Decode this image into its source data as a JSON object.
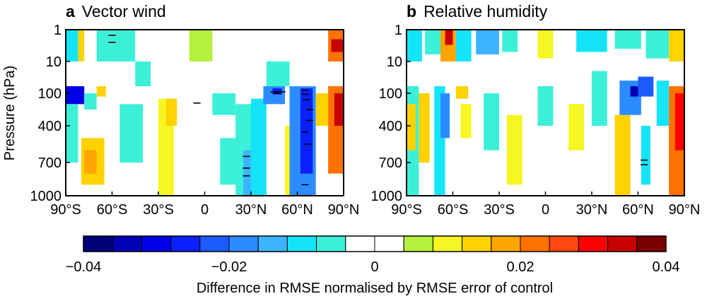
{
  "chart_data": {
    "type": "heatmap",
    "panels": [
      {
        "letter": "a",
        "title": "Vector wind",
        "cells": [
          {
            "lat": [
              -90,
              -82
            ],
            "p": [
              1,
              10
            ],
            "v": -0.012
          },
          {
            "lat": [
              -62,
              -58
            ],
            "p": [
              1,
              3
            ],
            "v": -0.035
          },
          {
            "lat": [
              -70,
              -45
            ],
            "p": [
              1,
              10
            ],
            "v": -0.006
          },
          {
            "lat": [
              -82,
              -78
            ],
            "p": [
              1,
              10
            ],
            "v": 0.012
          },
          {
            "lat": [
              -90,
              -80
            ],
            "p": [
              60,
              130
            ],
            "v": -0.02
          },
          {
            "lat": [
              -90,
              -78
            ],
            "p": [
              60,
              200
            ],
            "v": -0.03
          },
          {
            "lat": [
              -78,
              -70
            ],
            "p": [
              100,
              250
            ],
            "v": -0.008
          },
          {
            "lat": [
              -70,
              -64
            ],
            "p": [
              60,
              130
            ],
            "v": 0.014
          },
          {
            "lat": [
              -90,
              -82
            ],
            "p": [
              200,
              700
            ],
            "v": -0.006
          },
          {
            "lat": [
              -80,
              -65
            ],
            "p": [
              500,
              900
            ],
            "v": 0.012
          },
          {
            "lat": [
              -78,
              -70
            ],
            "p": [
              600,
              800
            ],
            "v": 0.018
          },
          {
            "lat": [
              -55,
              -40
            ],
            "p": [
              200,
              700
            ],
            "v": -0.006
          },
          {
            "lat": [
              -30,
              -20
            ],
            "p": [
              150,
              1000
            ],
            "v": 0.008
          },
          {
            "lat": [
              -25,
              -18
            ],
            "p": [
              150,
              400
            ],
            "v": 0.012
          },
          {
            "lat": [
              -45,
              -35
            ],
            "p": [
              10,
              60
            ],
            "v": -0.006
          },
          {
            "lat": [
              -10,
              5
            ],
            "p": [
              1,
              10
            ],
            "v": 0.006
          },
          {
            "lat": [
              5,
              20
            ],
            "p": [
              100,
              300
            ],
            "v": -0.006
          },
          {
            "lat": [
              10,
              25
            ],
            "p": [
              500,
              900
            ],
            "v": -0.005
          },
          {
            "lat": [
              20,
              30
            ],
            "p": [
              200,
              1000
            ],
            "v": -0.007
          },
          {
            "lat": [
              25,
              30
            ],
            "p": [
              600,
              1000
            ],
            "v": -0.015
          },
          {
            "lat": [
              30,
              40
            ],
            "p": [
              150,
              1000
            ],
            "v": -0.012
          },
          {
            "lat": [
              38,
              52
            ],
            "p": [
              60,
              200
            ],
            "v": -0.018
          },
          {
            "lat": [
              44,
              50
            ],
            "p": [
              70,
              110
            ],
            "v": -0.028
          },
          {
            "lat": [
              40,
              55
            ],
            "p": [
              10,
              60
            ],
            "v": -0.006
          },
          {
            "lat": [
              52,
              62
            ],
            "p": [
              400,
              1000
            ],
            "v": 0.008
          },
          {
            "lat": [
              55,
              72
            ],
            "p": [
              60,
              1000
            ],
            "v": -0.018
          },
          {
            "lat": [
              62,
              70
            ],
            "p": [
              70,
              800
            ],
            "v": -0.025
          },
          {
            "lat": [
              72,
              80
            ],
            "p": [
              100,
              400
            ],
            "v": 0.012
          },
          {
            "lat": [
              80,
              90
            ],
            "p": [
              1,
              10
            ],
            "v": 0.02
          },
          {
            "lat": [
              82,
              90
            ],
            "p": [
              2,
              5
            ],
            "v": 0.032
          },
          {
            "lat": [
              80,
              90
            ],
            "p": [
              60,
              800
            ],
            "v": 0.022
          },
          {
            "lat": [
              84,
              90
            ],
            "p": [
              100,
              400
            ],
            "v": 0.035
          }
        ],
        "marks": [
          [
            -60,
            1.5
          ],
          [
            -60,
            2.5
          ],
          [
            -5,
            190
          ],
          [
            27,
            650
          ],
          [
            27,
            750
          ],
          [
            27,
            820
          ],
          [
            45,
            90
          ],
          [
            47,
            100
          ],
          [
            50,
            90
          ],
          [
            65,
            80
          ],
          [
            65,
            110
          ],
          [
            66,
            160
          ],
          [
            68,
            250
          ],
          [
            68,
            350
          ],
          [
            65,
            450
          ],
          [
            67,
            550
          ],
          [
            65,
            900
          ]
        ]
      },
      {
        "letter": "b",
        "title": "Relative humidity",
        "cells": [
          {
            "lat": [
              -90,
              -80
            ],
            "p": [
              1,
              10
            ],
            "v": -0.012
          },
          {
            "lat": [
              -78,
              -68
            ],
            "p": [
              1,
              6
            ],
            "v": -0.006
          },
          {
            "lat": [
              -68,
              -58
            ],
            "p": [
              1,
              10
            ],
            "v": 0.018
          },
          {
            "lat": [
              -65,
              -60
            ],
            "p": [
              1,
              3
            ],
            "v": 0.032
          },
          {
            "lat": [
              -58,
              -48
            ],
            "p": [
              1,
              10
            ],
            "v": -0.012
          },
          {
            "lat": [
              -45,
              -30
            ],
            "p": [
              1,
              6
            ],
            "v": -0.015
          },
          {
            "lat": [
              -28,
              -18
            ],
            "p": [
              1,
              5
            ],
            "v": -0.008
          },
          {
            "lat": [
              -5,
              5
            ],
            "p": [
              1,
              8
            ],
            "v": 0.008
          },
          {
            "lat": [
              20,
              40
            ],
            "p": [
              1,
              5
            ],
            "v": -0.012
          },
          {
            "lat": [
              45,
              62
            ],
            "p": [
              1,
              4
            ],
            "v": -0.008
          },
          {
            "lat": [
              65,
              80
            ],
            "p": [
              1,
              8
            ],
            "v": -0.006
          },
          {
            "lat": [
              80,
              90
            ],
            "p": [
              1,
              10
            ],
            "v": 0.012
          },
          {
            "lat": [
              -90,
              -82
            ],
            "p": [
              60,
              1000
            ],
            "v": -0.006
          },
          {
            "lat": [
              -90,
              -84
            ],
            "p": [
              200,
              600
            ],
            "v": 0.015
          },
          {
            "lat": [
              -82,
              -75
            ],
            "p": [
              100,
              700
            ],
            "v": 0.012
          },
          {
            "lat": [
              -72,
              -65
            ],
            "p": [
              60,
              1000
            ],
            "v": -0.01
          },
          {
            "lat": [
              -68,
              -62
            ],
            "p": [
              100,
              500
            ],
            "v": -0.018
          },
          {
            "lat": [
              -58,
              -50
            ],
            "p": [
              60,
              150
            ],
            "v": 0.014
          },
          {
            "lat": [
              -55,
              -48
            ],
            "p": [
              200,
              500
            ],
            "v": 0.01
          },
          {
            "lat": [
              -40,
              -30
            ],
            "p": [
              100,
              600
            ],
            "v": -0.008
          },
          {
            "lat": [
              -25,
              -15
            ],
            "p": [
              300,
              900
            ],
            "v": 0.008
          },
          {
            "lat": [
              -5,
              5
            ],
            "p": [
              60,
              400
            ],
            "v": -0.006
          },
          {
            "lat": [
              15,
              25
            ],
            "p": [
              200,
              600
            ],
            "v": 0.008
          },
          {
            "lat": [
              30,
              40
            ],
            "p": [
              20,
              400
            ],
            "v": -0.008
          },
          {
            "lat": [
              45,
              55
            ],
            "p": [
              300,
              1000
            ],
            "v": 0.012
          },
          {
            "lat": [
              48,
              62
            ],
            "p": [
              40,
              300
            ],
            "v": -0.02
          },
          {
            "lat": [
              55,
              62
            ],
            "p": [
              60,
              130
            ],
            "v": -0.035
          },
          {
            "lat": [
              60,
              70
            ],
            "p": [
              30,
              130
            ],
            "v": -0.022
          },
          {
            "lat": [
              62,
              68
            ],
            "p": [
              400,
              900
            ],
            "v": -0.012
          },
          {
            "lat": [
              72,
              80
            ],
            "p": [
              40,
              400
            ],
            "v": -0.012
          },
          {
            "lat": [
              80,
              90
            ],
            "p": [
              60,
              1000
            ],
            "v": 0.02
          },
          {
            "lat": [
              84,
              90
            ],
            "p": [
              100,
              600
            ],
            "v": 0.03
          }
        ],
        "marks": [
          [
            64,
            680
          ],
          [
            64,
            720
          ]
        ]
      }
    ],
    "y_axis": {
      "label": "Pressure (hPa)",
      "ticks": [
        1,
        10,
        100,
        400,
        700,
        1000
      ],
      "inverted": true
    },
    "x_axis": {
      "ticks": [
        -90,
        -60,
        -30,
        0,
        30,
        60,
        90
      ],
      "tick_labels": [
        "90°S",
        "60°S",
        "30°S",
        "0",
        "30°N",
        "60°N",
        "90°N"
      ]
    },
    "colorbar": {
      "label": "Difference in RMSE normalised by RMSE error of control",
      "range": [
        -0.04,
        0.04
      ],
      "ticks": [
        -0.04,
        -0.02,
        0,
        0.02,
        0.04
      ],
      "tick_labels": [
        "−0.04",
        "−0.02",
        "0",
        "0.02",
        "0.04"
      ],
      "colors": [
        "#00007a",
        "#0000b4",
        "#0000e6",
        "#0a20ff",
        "#1c5cff",
        "#2c8cff",
        "#3cb4ff",
        "#14e4f8",
        "#3cf0d8",
        "#ffffff",
        "#ffffff",
        "#b4f03c",
        "#f6f622",
        "#ffd200",
        "#ffa400",
        "#ff7200",
        "#ff4810",
        "#ff0000",
        "#c80000",
        "#7a0000"
      ]
    }
  }
}
